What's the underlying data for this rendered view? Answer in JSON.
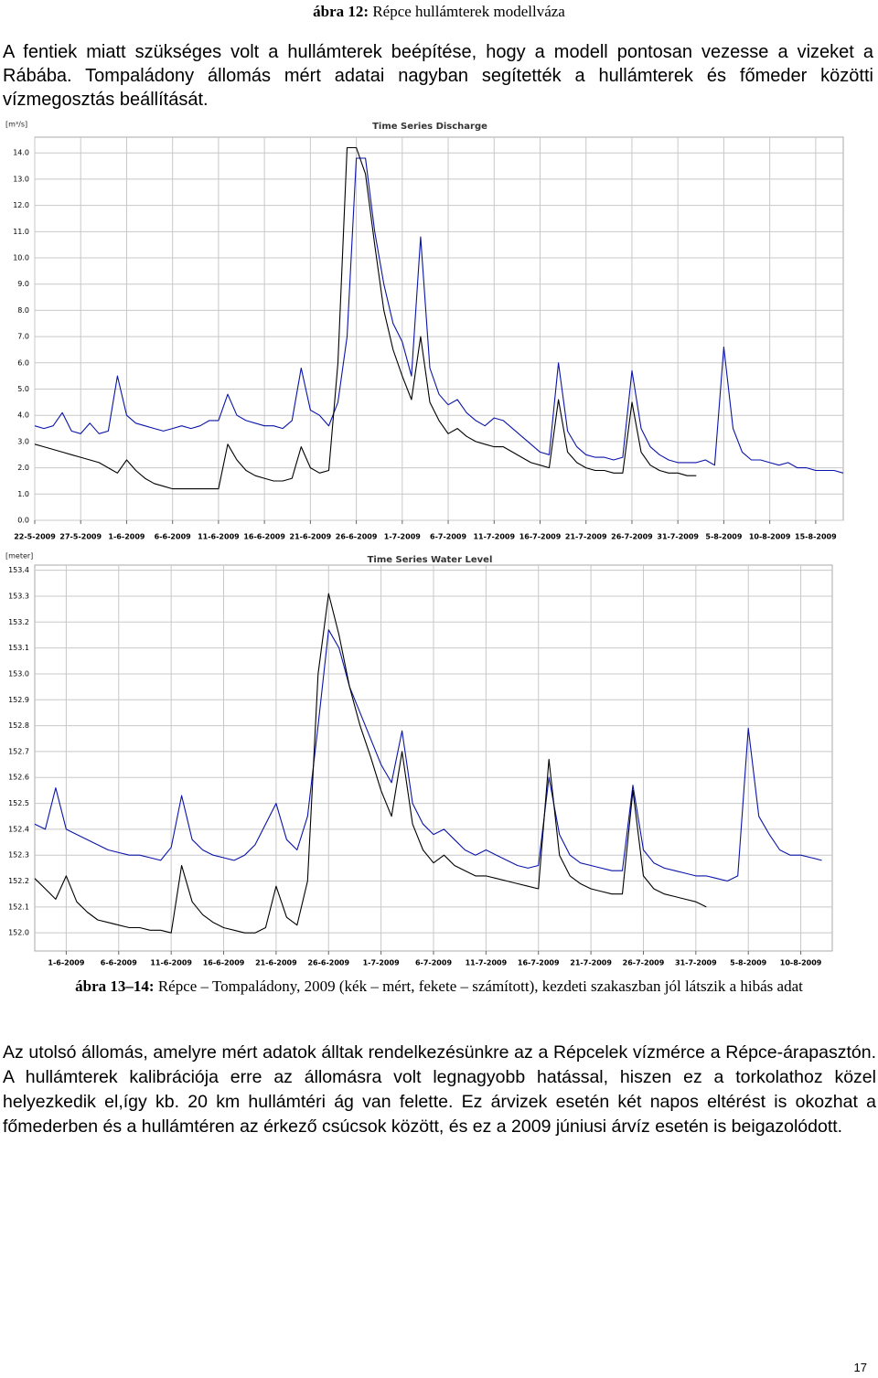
{
  "figure12_caption": {
    "label": "ábra 12:",
    "text": "Répce hullámterek modellváza"
  },
  "paragraph1": "A fentiek miatt szükséges volt a hullámterek beépítése, hogy a modell pontosan vezesse a vizeket a Rábába. Tompaládony állomás mért adatai nagyban segítették a hullámterek és főmeder közötti vízmegosztás beállítását.",
  "chart_data": [
    {
      "type": "line",
      "title": "Time Series Discharge",
      "y_label": "[m³/s]",
      "grid": true,
      "x": [
        "22-5-2009",
        "23-5-2009",
        "24-5-2009",
        "25-5-2009",
        "26-5-2009",
        "27-5-2009",
        "28-5-2009",
        "29-5-2009",
        "30-5-2009",
        "31-5-2009",
        "1-6-2009",
        "2-6-2009",
        "3-6-2009",
        "4-6-2009",
        "5-6-2009",
        "6-6-2009",
        "7-6-2009",
        "8-6-2009",
        "9-6-2009",
        "10-6-2009",
        "11-6-2009",
        "12-6-2009",
        "13-6-2009",
        "14-6-2009",
        "15-6-2009",
        "16-6-2009",
        "17-6-2009",
        "18-6-2009",
        "19-6-2009",
        "20-6-2009",
        "21-6-2009",
        "22-6-2009",
        "23-6-2009",
        "24-6-2009",
        "25-6-2009",
        "26-6-2009",
        "27-6-2009",
        "28-6-2009",
        "29-6-2009",
        "30-6-2009",
        "1-7-2009",
        "2-7-2009",
        "3-7-2009",
        "4-7-2009",
        "5-7-2009",
        "6-7-2009",
        "7-7-2009",
        "8-7-2009",
        "9-7-2009",
        "10-7-2009",
        "11-7-2009",
        "12-7-2009",
        "13-7-2009",
        "14-7-2009",
        "15-7-2009",
        "16-7-2009",
        "17-7-2009",
        "18-7-2009",
        "19-7-2009",
        "20-7-2009",
        "21-7-2009",
        "22-7-2009",
        "23-7-2009",
        "24-7-2009",
        "25-7-2009",
        "26-7-2009",
        "27-7-2009",
        "28-7-2009",
        "29-7-2009",
        "30-7-2009",
        "31-7-2009",
        "1-8-2009",
        "2-8-2009",
        "3-8-2009",
        "4-8-2009",
        "5-8-2009",
        "6-8-2009",
        "7-8-2009",
        "8-8-2009",
        "9-8-2009",
        "10-8-2009",
        "11-8-2009",
        "12-8-2009",
        "13-8-2009",
        "14-8-2009",
        "15-8-2009",
        "16-8-2009",
        "17-8-2009",
        "18-8-2009"
      ],
      "series": [
        {
          "color": "#0a14a8",
          "values": [
            3.6,
            3.5,
            3.6,
            4.1,
            3.4,
            3.3,
            3.7,
            3.3,
            3.4,
            5.5,
            4.0,
            3.7,
            3.6,
            3.5,
            3.4,
            3.5,
            3.6,
            3.5,
            3.6,
            3.8,
            3.8,
            4.8,
            4.0,
            3.8,
            3.7,
            3.6,
            3.6,
            3.5,
            3.8,
            5.8,
            4.2,
            4.0,
            3.6,
            4.5,
            7.0,
            13.8,
            13.8,
            11.0,
            9.0,
            7.5,
            6.8,
            5.5,
            10.8,
            5.8,
            4.8,
            4.4,
            4.6,
            4.1,
            3.8,
            3.6,
            3.9,
            3.8,
            3.5,
            3.2,
            2.9,
            2.6,
            2.5,
            6.0,
            3.4,
            2.8,
            2.5,
            2.4,
            2.4,
            2.3,
            2.4,
            5.7,
            3.5,
            2.8,
            2.5,
            2.3,
            2.2,
            2.2,
            2.2,
            2.3,
            2.1,
            6.6,
            3.5,
            2.6,
            2.3,
            2.3,
            2.2,
            2.1,
            2.2,
            2.0,
            2.0,
            1.9,
            1.9,
            1.9,
            1.8
          ]
        },
        {
          "color": "#000000",
          "values": [
            2.9,
            2.8,
            2.7,
            2.6,
            2.5,
            2.4,
            2.3,
            2.2,
            2.0,
            1.8,
            2.3,
            1.9,
            1.6,
            1.4,
            1.3,
            1.2,
            1.2,
            1.2,
            1.2,
            1.2,
            1.2,
            2.9,
            2.3,
            1.9,
            1.7,
            1.6,
            1.5,
            1.5,
            1.6,
            2.8,
            2.0,
            1.8,
            1.9,
            6.0,
            14.2,
            14.2,
            13.2,
            10.5,
            8.0,
            6.5,
            5.5,
            4.6,
            7.0,
            4.5,
            3.8,
            3.3,
            3.5,
            3.2,
            3.0,
            2.9,
            2.8,
            2.8,
            2.6,
            2.4,
            2.2,
            2.1,
            2.0,
            4.6,
            2.6,
            2.2,
            2.0,
            1.9,
            1.9,
            1.8,
            1.8,
            4.5,
            2.6,
            2.1,
            1.9,
            1.8,
            1.8,
            1.7,
            1.7,
            null,
            null,
            null,
            null,
            null,
            null,
            null,
            null,
            null,
            null,
            null,
            null,
            null,
            null,
            null,
            null
          ]
        }
      ],
      "xlim": [
        "22-5-2009",
        "18-8-2009"
      ],
      "xticks": [
        "22-5-2009",
        "27-5-2009",
        "1-6-2009",
        "6-6-2009",
        "11-6-2009",
        "16-6-2009",
        "21-6-2009",
        "26-6-2009",
        "1-7-2009",
        "6-7-2009",
        "11-7-2009",
        "16-7-2009",
        "21-7-2009",
        "26-7-2009",
        "31-7-2009",
        "5-8-2009",
        "10-8-2009",
        "15-8-2009"
      ],
      "ylim": [
        0,
        14.6
      ],
      "yticks": [
        {
          "value": 0,
          "label": "0.0"
        },
        {
          "value": 1,
          "label": "1.0"
        },
        {
          "value": 2,
          "label": "2.0"
        },
        {
          "value": 3,
          "label": "3.0"
        },
        {
          "value": 4,
          "label": "4.0"
        },
        {
          "value": 5,
          "label": "5.0"
        },
        {
          "value": 6,
          "label": "6.0"
        },
        {
          "value": 7,
          "label": "7.0"
        },
        {
          "value": 8,
          "label": "8.0"
        },
        {
          "value": 9,
          "label": "9.0"
        },
        {
          "value": 10,
          "label": "10.0"
        },
        {
          "value": 11,
          "label": "11.0"
        },
        {
          "value": 12,
          "label": "12.0"
        },
        {
          "value": 13,
          "label": "13.0"
        },
        {
          "value": 14,
          "label": "14.0"
        }
      ]
    },
    {
      "type": "line",
      "title": "Time Series Water Level",
      "y_label": "[meter]",
      "grid": true,
      "x": [
        "29-5-2009",
        "30-5-2009",
        "31-5-2009",
        "1-6-2009",
        "2-6-2009",
        "3-6-2009",
        "4-6-2009",
        "5-6-2009",
        "6-6-2009",
        "7-6-2009",
        "8-6-2009",
        "9-6-2009",
        "10-6-2009",
        "11-6-2009",
        "12-6-2009",
        "13-6-2009",
        "14-6-2009",
        "15-6-2009",
        "16-6-2009",
        "17-6-2009",
        "18-6-2009",
        "19-6-2009",
        "20-6-2009",
        "21-6-2009",
        "22-6-2009",
        "23-6-2009",
        "24-6-2009",
        "25-6-2009",
        "26-6-2009",
        "27-6-2009",
        "28-6-2009",
        "29-6-2009",
        "30-6-2009",
        "1-7-2009",
        "2-7-2009",
        "3-7-2009",
        "4-7-2009",
        "5-7-2009",
        "6-7-2009",
        "7-7-2009",
        "8-7-2009",
        "9-7-2009",
        "10-7-2009",
        "11-7-2009",
        "12-7-2009",
        "13-7-2009",
        "14-7-2009",
        "15-7-2009",
        "16-7-2009",
        "17-7-2009",
        "18-7-2009",
        "19-7-2009",
        "20-7-2009",
        "21-7-2009",
        "22-7-2009",
        "23-7-2009",
        "24-7-2009",
        "25-7-2009",
        "26-7-2009",
        "27-7-2009",
        "28-7-2009",
        "29-7-2009",
        "30-7-2009",
        "31-7-2009",
        "1-8-2009",
        "2-8-2009",
        "3-8-2009",
        "4-8-2009",
        "5-8-2009",
        "6-8-2009",
        "7-8-2009",
        "8-8-2009",
        "9-8-2009",
        "10-8-2009",
        "11-8-2009",
        "12-8-2009"
      ],
      "series": [
        {
          "color": "#0a14a8",
          "values": [
            152.42,
            152.4,
            152.56,
            152.4,
            152.38,
            152.36,
            152.34,
            152.32,
            152.31,
            152.3,
            152.3,
            152.29,
            152.28,
            152.33,
            152.53,
            152.36,
            152.32,
            152.3,
            152.29,
            152.28,
            152.3,
            152.34,
            152.42,
            152.5,
            152.36,
            152.32,
            152.45,
            152.8,
            153.17,
            153.1,
            152.95,
            152.85,
            152.75,
            152.65,
            152.58,
            152.78,
            152.5,
            152.42,
            152.38,
            152.4,
            152.36,
            152.32,
            152.3,
            152.32,
            152.3,
            152.28,
            152.26,
            152.25,
            152.26,
            152.6,
            152.38,
            152.3,
            152.27,
            152.26,
            152.25,
            152.24,
            152.24,
            152.57,
            152.32,
            152.27,
            152.25,
            152.24,
            152.23,
            152.22,
            152.22,
            152.21,
            152.2,
            152.22,
            152.79,
            152.45,
            152.38,
            152.32,
            152.3,
            152.3,
            152.29,
            152.28
          ]
        },
        {
          "color": "#000000",
          "values": [
            152.21,
            152.17,
            152.13,
            152.22,
            152.12,
            152.08,
            152.05,
            152.04,
            152.03,
            152.02,
            152.02,
            152.01,
            152.01,
            152.0,
            152.26,
            152.12,
            152.07,
            152.04,
            152.02,
            152.01,
            152.0,
            152.0,
            152.02,
            152.18,
            152.06,
            152.03,
            152.2,
            153.0,
            153.31,
            153.15,
            152.95,
            152.8,
            152.68,
            152.55,
            152.45,
            152.7,
            152.42,
            152.32,
            152.27,
            152.3,
            152.26,
            152.24,
            152.22,
            152.22,
            152.21,
            152.2,
            152.19,
            152.18,
            152.17,
            152.67,
            152.3,
            152.22,
            152.19,
            152.17,
            152.16,
            152.15,
            152.15,
            152.55,
            152.22,
            152.17,
            152.15,
            152.14,
            152.13,
            152.12,
            152.1,
            null,
            null,
            null,
            null,
            null,
            null,
            null,
            null,
            null,
            null,
            null
          ]
        }
      ],
      "xlim": [
        "29-5-2009",
        "13-8-2009"
      ],
      "xticks": [
        "1-6-2009",
        "6-6-2009",
        "11-6-2009",
        "16-6-2009",
        "21-6-2009",
        "26-6-2009",
        "1-7-2009",
        "6-7-2009",
        "11-7-2009",
        "16-7-2009",
        "21-7-2009",
        "26-7-2009",
        "31-7-2009",
        "5-8-2009",
        "10-8-2009"
      ],
      "ylim": [
        151.93,
        153.42
      ],
      "yticks": [
        {
          "value": 152,
          "label": "152.0"
        },
        152.1,
        152.2,
        152.3,
        152.4,
        152.5,
        152.6,
        152.7,
        152.8,
        152.9,
        {
          "value": 153,
          "label": "153.0"
        },
        153.1,
        153.2,
        153.3,
        153.4
      ]
    }
  ],
  "figure13_caption": {
    "label": "ábra 13–14:",
    "text": "Répce – Tompaládony, 2009 (kék – mért, fekete – számított), kezdeti szakaszban jól látszik a hibás adat"
  },
  "paragraph2": "Az utolsó állomás, amelyre mért adatok álltak rendelkezésünkre az a Répcelek vízmérce a Répce-árapasztón. A hullámterek kalibrációja erre az állomásra volt legnagyobb hatással, hiszen ez a torkolathoz közel helyezkedik el,így kb. 20 km hullámtéri ág van felette. Ez árvizek esetén két napos eltérést is okozhat a főmederben és a hullámtéren az érkező csúcsok között, és ez a 2009 júniusi árvíz esetén is beigazolódott.",
  "page_number": 17
}
